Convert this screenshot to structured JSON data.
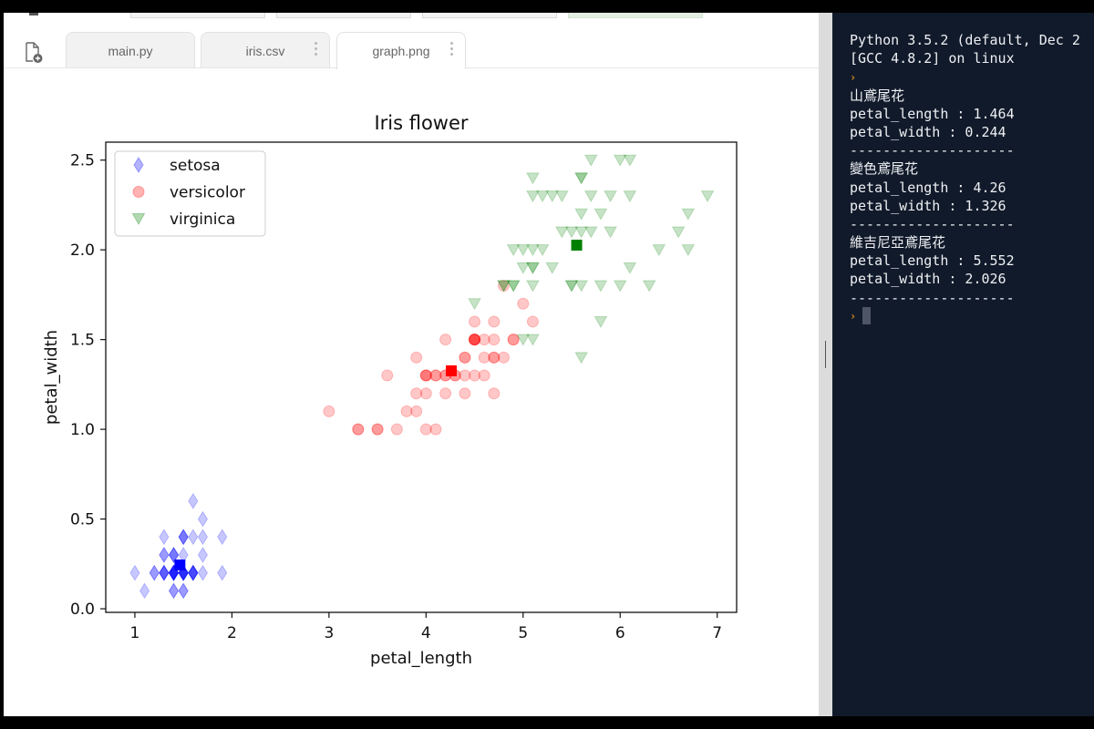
{
  "tabs": [
    {
      "label": "main.py",
      "active": false,
      "menu": false
    },
    {
      "label": "iris.csv",
      "active": false,
      "menu": true
    },
    {
      "label": "graph.png",
      "active": true,
      "menu": true
    }
  ],
  "console": {
    "lines": [
      "Python 3.5.2 (default, Dec 2",
      "[GCC 4.8.2] on linux",
      {
        "prompt": "›"
      },
      "山鳶尾花",
      "petal_length : 1.464",
      "petal_width : 0.244",
      "--------------------",
      "變色鳶尾花",
      "petal_length : 4.26",
      "petal_width : 1.326",
      "--------------------",
      "維吉尼亞鳶尾花",
      "petal_length : 5.552",
      "petal_width : 2.026",
      "--------------------"
    ],
    "input_prompt": "›"
  },
  "colors": {
    "setosa": "#0000ff",
    "versicolor": "#ff0000",
    "virginica": "#008000",
    "prompt": "#d38a1f"
  },
  "chart_data": {
    "type": "scatter",
    "title": "Iris flower",
    "xlabel": "petal_length",
    "ylabel": "petal_width",
    "xlim": [
      0.7,
      7.2
    ],
    "ylim": [
      -0.02,
      2.6
    ],
    "xticks": [
      1,
      2,
      3,
      4,
      5,
      6,
      7
    ],
    "yticks": [
      0.0,
      0.5,
      1.0,
      1.5,
      2.0,
      2.5
    ],
    "legend": "upper-left",
    "grid": false,
    "series": [
      {
        "name": "setosa",
        "marker": "diamond",
        "color": "#0000ff",
        "points": [
          [
            1.4,
            0.2
          ],
          [
            1.4,
            0.2
          ],
          [
            1.3,
            0.2
          ],
          [
            1.5,
            0.2
          ],
          [
            1.4,
            0.2
          ],
          [
            1.7,
            0.4
          ],
          [
            1.4,
            0.3
          ],
          [
            1.5,
            0.2
          ],
          [
            1.4,
            0.2
          ],
          [
            1.5,
            0.1
          ],
          [
            1.5,
            0.2
          ],
          [
            1.6,
            0.2
          ],
          [
            1.4,
            0.1
          ],
          [
            1.1,
            0.1
          ],
          [
            1.2,
            0.2
          ],
          [
            1.5,
            0.4
          ],
          [
            1.3,
            0.4
          ],
          [
            1.4,
            0.3
          ],
          [
            1.7,
            0.3
          ],
          [
            1.5,
            0.3
          ],
          [
            1.7,
            0.2
          ],
          [
            1.5,
            0.4
          ],
          [
            1.0,
            0.2
          ],
          [
            1.7,
            0.5
          ],
          [
            1.9,
            0.2
          ],
          [
            1.6,
            0.2
          ],
          [
            1.6,
            0.4
          ],
          [
            1.5,
            0.2
          ],
          [
            1.4,
            0.2
          ],
          [
            1.6,
            0.2
          ],
          [
            1.6,
            0.2
          ],
          [
            1.5,
            0.4
          ],
          [
            1.5,
            0.1
          ],
          [
            1.4,
            0.2
          ],
          [
            1.5,
            0.2
          ],
          [
            1.2,
            0.2
          ],
          [
            1.3,
            0.2
          ],
          [
            1.4,
            0.1
          ],
          [
            1.3,
            0.2
          ],
          [
            1.5,
            0.2
          ],
          [
            1.3,
            0.3
          ],
          [
            1.3,
            0.3
          ],
          [
            1.3,
            0.2
          ],
          [
            1.6,
            0.6
          ],
          [
            1.9,
            0.4
          ],
          [
            1.4,
            0.3
          ],
          [
            1.6,
            0.2
          ],
          [
            1.4,
            0.2
          ],
          [
            1.5,
            0.2
          ],
          [
            1.4,
            0.2
          ]
        ],
        "mean": [
          1.464,
          0.244
        ]
      },
      {
        "name": "versicolor",
        "marker": "circle",
        "color": "#ff0000",
        "points": [
          [
            4.7,
            1.4
          ],
          [
            4.5,
            1.5
          ],
          [
            4.9,
            1.5
          ],
          [
            4.0,
            1.3
          ],
          [
            4.6,
            1.5
          ],
          [
            4.5,
            1.3
          ],
          [
            4.7,
            1.6
          ],
          [
            3.3,
            1.0
          ],
          [
            4.6,
            1.3
          ],
          [
            3.9,
            1.4
          ],
          [
            3.5,
            1.0
          ],
          [
            4.2,
            1.5
          ],
          [
            4.0,
            1.0
          ],
          [
            4.7,
            1.4
          ],
          [
            3.6,
            1.3
          ],
          [
            4.4,
            1.4
          ],
          [
            4.5,
            1.5
          ],
          [
            4.1,
            1.0
          ],
          [
            4.5,
            1.5
          ],
          [
            3.9,
            1.1
          ],
          [
            4.8,
            1.8
          ],
          [
            4.0,
            1.3
          ],
          [
            4.9,
            1.5
          ],
          [
            4.7,
            1.2
          ],
          [
            4.3,
            1.3
          ],
          [
            4.4,
            1.4
          ],
          [
            4.8,
            1.4
          ],
          [
            5.0,
            1.7
          ],
          [
            4.5,
            1.5
          ],
          [
            3.5,
            1.0
          ],
          [
            3.8,
            1.1
          ],
          [
            3.7,
            1.0
          ],
          [
            3.9,
            1.2
          ],
          [
            5.1,
            1.6
          ],
          [
            4.5,
            1.5
          ],
          [
            4.5,
            1.6
          ],
          [
            4.7,
            1.5
          ],
          [
            4.4,
            1.3
          ],
          [
            4.1,
            1.3
          ],
          [
            4.0,
            1.3
          ],
          [
            4.4,
            1.2
          ],
          [
            4.6,
            1.4
          ],
          [
            4.0,
            1.2
          ],
          [
            3.3,
            1.0
          ],
          [
            4.2,
            1.3
          ],
          [
            4.2,
            1.2
          ],
          [
            4.2,
            1.3
          ],
          [
            4.3,
            1.3
          ],
          [
            3.0,
            1.1
          ],
          [
            4.1,
            1.3
          ]
        ],
        "mean": [
          4.26,
          1.326
        ]
      },
      {
        "name": "virginica",
        "marker": "triangle-down",
        "color": "#008000",
        "points": [
          [
            6.0,
            2.5
          ],
          [
            5.1,
            1.9
          ],
          [
            5.9,
            2.1
          ],
          [
            5.6,
            1.8
          ],
          [
            5.8,
            2.2
          ],
          [
            6.6,
            2.1
          ],
          [
            4.5,
            1.7
          ],
          [
            6.3,
            1.8
          ],
          [
            5.8,
            1.8
          ],
          [
            6.1,
            2.5
          ],
          [
            5.1,
            2.0
          ],
          [
            5.3,
            1.9
          ],
          [
            5.5,
            2.1
          ],
          [
            5.0,
            2.0
          ],
          [
            5.1,
            2.4
          ],
          [
            5.3,
            2.3
          ],
          [
            5.5,
            1.8
          ],
          [
            6.7,
            2.2
          ],
          [
            6.9,
            2.3
          ],
          [
            5.0,
            1.5
          ],
          [
            5.7,
            2.3
          ],
          [
            4.9,
            2.0
          ],
          [
            6.7,
            2.0
          ],
          [
            4.9,
            1.8
          ],
          [
            5.7,
            2.1
          ],
          [
            6.0,
            1.8
          ],
          [
            4.8,
            1.8
          ],
          [
            4.9,
            1.8
          ],
          [
            5.6,
            2.1
          ],
          [
            5.8,
            1.6
          ],
          [
            6.1,
            1.9
          ],
          [
            6.4,
            2.0
          ],
          [
            5.6,
            2.2
          ],
          [
            5.1,
            1.5
          ],
          [
            5.6,
            1.4
          ],
          [
            6.1,
            2.3
          ],
          [
            5.6,
            2.4
          ],
          [
            5.5,
            1.8
          ],
          [
            4.8,
            1.8
          ],
          [
            5.4,
            2.1
          ],
          [
            5.6,
            2.4
          ],
          [
            5.1,
            2.3
          ],
          [
            5.1,
            1.9
          ],
          [
            5.9,
            2.3
          ],
          [
            5.7,
            2.5
          ],
          [
            5.2,
            2.3
          ],
          [
            5.0,
            1.9
          ],
          [
            5.2,
            2.0
          ],
          [
            5.4,
            2.3
          ],
          [
            5.1,
            1.8
          ]
        ],
        "mean": [
          5.552,
          2.026
        ]
      }
    ]
  }
}
